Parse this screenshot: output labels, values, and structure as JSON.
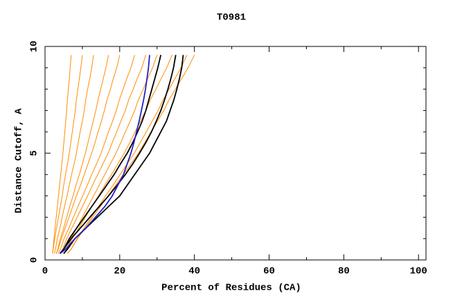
{
  "chart_data": {
    "type": "line",
    "title": "T0981",
    "xlabel": "Percent of Residues (CA)",
    "ylabel": "Distance Cutoff, A",
    "xlim": [
      0,
      102
    ],
    "ylim": [
      0,
      10
    ],
    "xticks": [
      0,
      20,
      40,
      60,
      80,
      100
    ],
    "yticks": [
      0,
      5,
      10
    ],
    "xminorticks": [
      10,
      30,
      50,
      70,
      90
    ],
    "yminorticks": [
      1,
      2,
      3,
      4,
      6,
      7,
      8,
      9
    ],
    "y": [
      0.3,
      0.5,
      1,
      1.5,
      2,
      2.5,
      3,
      3.5,
      4,
      4.5,
      5,
      5.5,
      6,
      6.5,
      7,
      7.5,
      8,
      8.5,
      9,
      9.6
    ],
    "series": [
      {
        "color": "#ff8c00",
        "x": [
          2,
          2.15,
          2.4,
          2.7,
          3,
          3.3,
          3.6,
          3.9,
          4.2,
          4.5,
          4.8,
          5.05,
          5.3,
          5.55,
          5.8,
          6,
          6.25,
          6.5,
          6.75,
          7
        ]
      },
      {
        "color": "#ff8c00",
        "x": [
          2,
          2.2,
          2.6,
          3.1,
          3.6,
          4.1,
          4.6,
          5,
          5.5,
          6,
          6.5,
          6.9,
          7.3,
          7.7,
          8.1,
          8.4,
          8.8,
          9.2,
          9.6,
          10
        ]
      },
      {
        "color": "#ff8c00",
        "x": [
          2.5,
          2.8,
          3.3,
          4,
          4.6,
          5.2,
          5.9,
          6.5,
          7.1,
          7.8,
          8.4,
          8.9,
          9.4,
          10,
          10.5,
          10.9,
          11.4,
          12,
          12.5,
          13
        ]
      },
      {
        "color": "#ff8c00",
        "x": [
          3,
          3.4,
          4.1,
          5,
          5.8,
          6.6,
          7.5,
          8.3,
          9.2,
          10,
          10.8,
          11.5,
          12.2,
          12.9,
          13.6,
          14.2,
          14.9,
          15.6,
          16.3,
          17
        ]
      },
      {
        "color": "#ff8c00",
        "x": [
          3,
          3.5,
          4.4,
          5.4,
          6.4,
          7.4,
          8.4,
          9.5,
          10.5,
          11.5,
          12.5,
          13.4,
          14.2,
          15.1,
          15.9,
          16.6,
          17.5,
          18.3,
          19.2,
          20
        ]
      },
      {
        "color": "#ff8c00",
        "x": [
          3.5,
          4.1,
          5.1,
          6.4,
          7.6,
          8.8,
          10.1,
          11.3,
          12.5,
          13.8,
          15,
          16,
          17,
          18.1,
          19.1,
          19.9,
          20.9,
          21.9,
          23,
          24
        ]
      },
      {
        "color": "#ff8c00",
        "x": [
          4,
          4.7,
          5.8,
          7.2,
          8.6,
          10,
          11.4,
          12.7,
          14.1,
          15.5,
          16.9,
          18,
          19.2,
          20.3,
          21.5,
          22.4,
          23.6,
          24.7,
          25.9,
          27
        ]
      },
      {
        "color": "#ff8c00",
        "x": [
          5,
          5.8,
          7,
          8.5,
          10,
          11.5,
          13,
          14.5,
          16,
          17.5,
          19,
          20.3,
          21.5,
          22.8,
          24,
          25,
          26.3,
          27.5,
          28.8,
          30
        ]
      },
      {
        "color": "#ff8c00",
        "x": [
          5,
          5.9,
          7.3,
          9.1,
          10.8,
          12.5,
          14.3,
          16,
          17.8,
          19.5,
          21.2,
          22.7,
          24.1,
          25.6,
          27,
          28.2,
          29.7,
          31.1,
          32.6,
          34
        ]
      },
      {
        "color": "#ff8c00",
        "x": [
          6,
          7,
          8.6,
          10.5,
          12.4,
          14.3,
          16.2,
          18.2,
          20.1,
          22,
          23.9,
          25.5,
          27.1,
          28.7,
          30.3,
          31.6,
          33.2,
          34.8,
          36.4,
          38
        ]
      },
      {
        "color": "#ff8c00",
        "x": [
          6,
          7,
          8.7,
          10.8,
          12.8,
          14.8,
          16.9,
          18.9,
          21,
          23,
          25,
          26.7,
          28.4,
          30.1,
          31.8,
          33.2,
          34.9,
          36.6,
          38.3,
          40
        ]
      },
      {
        "color": "#000000",
        "x": [
          4,
          5,
          6.5,
          8.5,
          10.5,
          12.5,
          14.5,
          16.5,
          18.5,
          20.2,
          22,
          23.5,
          24.8,
          26,
          27,
          27.8,
          28.6,
          29.4,
          30.2,
          31
        ]
      },
      {
        "color": "#000000",
        "x": [
          4,
          5,
          7,
          9.5,
          12,
          14.5,
          17,
          19.3,
          21.5,
          23.5,
          25.3,
          27,
          28.5,
          29.8,
          31,
          32,
          32.9,
          33.7,
          34.4,
          35
        ]
      },
      {
        "color": "#000000",
        "x": [
          5,
          6,
          8,
          11,
          14,
          17,
          20,
          22,
          24,
          26,
          28,
          29.5,
          31,
          32.5,
          33.5,
          34.5,
          35.3,
          36,
          36.6,
          37
        ]
      },
      {
        "color": "#2020c8",
        "x": [
          4,
          5.5,
          8,
          11,
          13.5,
          16,
          18,
          19.5,
          21,
          22,
          23,
          23.8,
          24.5,
          25.2,
          25.8,
          26.4,
          26.9,
          27.3,
          27.7,
          28
        ]
      }
    ]
  }
}
